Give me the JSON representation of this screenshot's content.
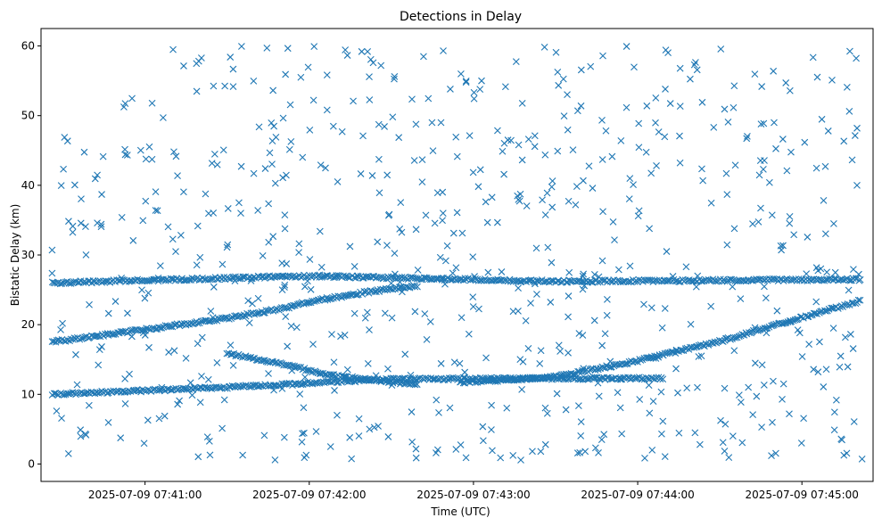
{
  "chart_data": {
    "type": "scatter",
    "title": "Detections in Delay",
    "xlabel": "Time (UTC)",
    "ylabel": "Bistatic Delay (km)",
    "marker": "x",
    "color": "#1f77b4",
    "x_start": "2025-07-09 07:40:26",
    "x_end": "2025-07-09 07:45:22",
    "xlim": [
      "2025-07-09 07:40:22",
      "2025-07-09 07:45:26"
    ],
    "ylim": [
      -2.5,
      62.5
    ],
    "x_ticks": [
      "2025-07-09 07:41:00",
      "2025-07-09 07:42:00",
      "2025-07-09 07:43:00",
      "2025-07-09 07:44:00",
      "2025-07-09 07:45:00"
    ],
    "y_ticks": [
      "0",
      "10",
      "20",
      "30",
      "40",
      "50",
      "60"
    ],
    "grid": false,
    "legend": "none",
    "tracks": [
      {
        "name": "rising target",
        "points": [
          [
            "07:40:26",
            17.5
          ],
          [
            "07:41:00",
            19.3
          ],
          [
            "07:41:30",
            20.9
          ],
          [
            "07:41:50",
            22.3
          ],
          [
            "07:42:00",
            23.3
          ],
          [
            "07:42:20",
            24.6
          ],
          [
            "07:42:40",
            25.6
          ]
        ]
      },
      {
        "name": "descending target",
        "points": [
          [
            "07:41:30",
            15.9
          ],
          [
            "07:41:50",
            14.3
          ],
          [
            "07:42:10",
            12.6
          ],
          [
            "07:42:30",
            11.8
          ],
          [
            "07:42:40",
            11.3
          ]
        ]
      },
      {
        "name": "ascending target",
        "points": [
          [
            "07:42:55",
            11.7
          ],
          [
            "07:43:30",
            12.5
          ],
          [
            "07:44:00",
            14.8
          ],
          [
            "07:44:30",
            17.6
          ],
          [
            "07:45:00",
            21.0
          ],
          [
            "07:45:22",
            23.5
          ]
        ]
      },
      {
        "name": "band 26 km",
        "points": [
          [
            "07:40:26",
            26.0
          ],
          [
            "07:42:00",
            27.0
          ],
          [
            "07:43:30",
            26.2
          ],
          [
            "07:45:22",
            26.5
          ]
        ]
      },
      {
        "name": "band 10 km",
        "points": [
          [
            "07:40:26",
            10.0
          ],
          [
            "07:41:30",
            11.0
          ],
          [
            "07:42:30",
            12.2
          ],
          [
            "07:44:10",
            12.3
          ]
        ]
      }
    ],
    "clutter": {
      "count": 700,
      "y_range": [
        0.5,
        60
      ],
      "description_only_for_render": ""
    }
  }
}
